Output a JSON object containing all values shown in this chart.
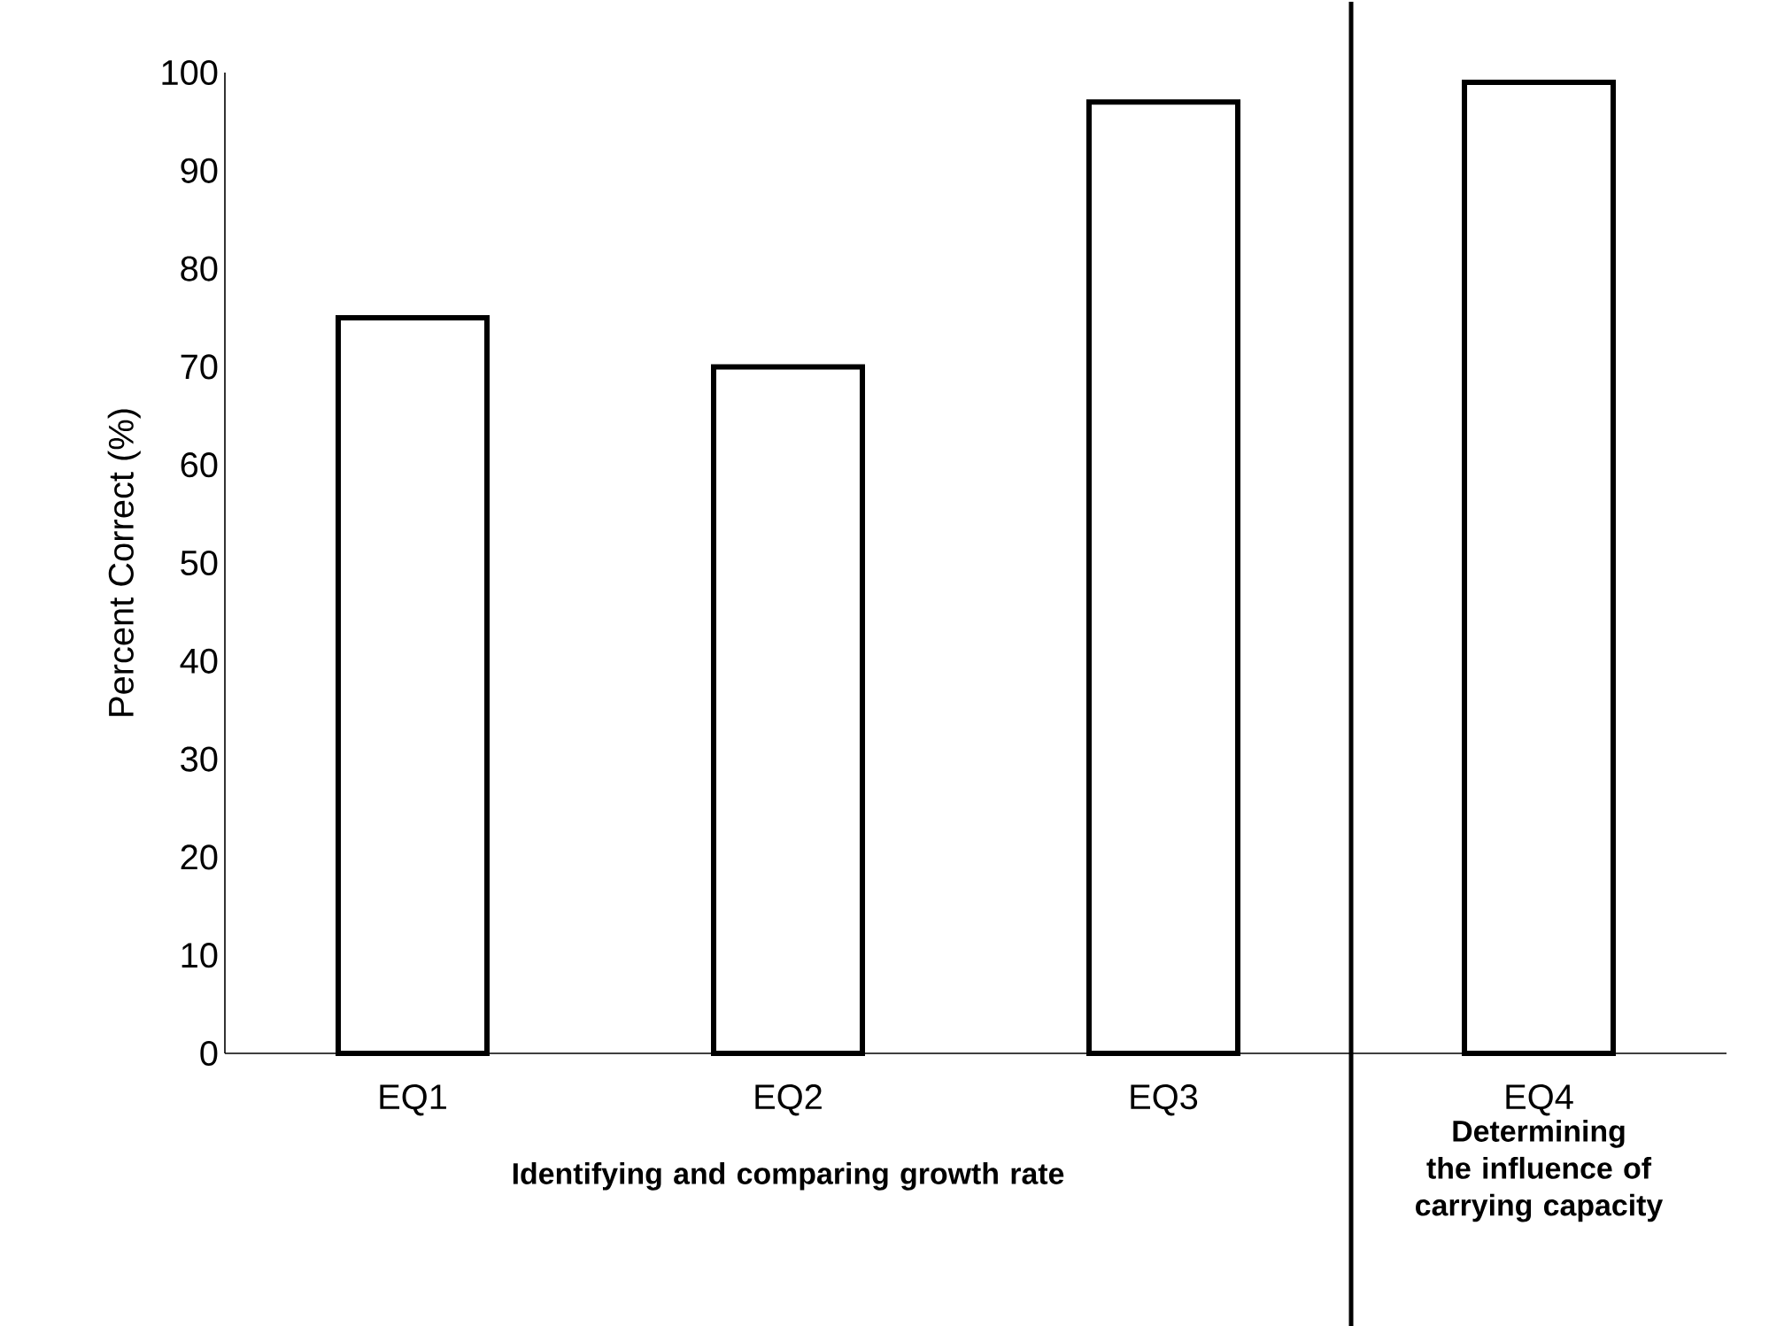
{
  "chart_data": {
    "type": "bar",
    "ylabel": "Percent Correct (%)",
    "categories": [
      "EQ1",
      "EQ2",
      "EQ3",
      "EQ4"
    ],
    "values": [
      75,
      70,
      97,
      99
    ],
    "color": "#000000",
    "ylim": [
      0,
      100
    ],
    "yticks": [
      0,
      10,
      20,
      30,
      40,
      50,
      60,
      70,
      80,
      90,
      100
    ],
    "annotations": [
      "Identifying and comparing growth rate",
      "Determining the influence of carrying capacity"
    ]
  }
}
